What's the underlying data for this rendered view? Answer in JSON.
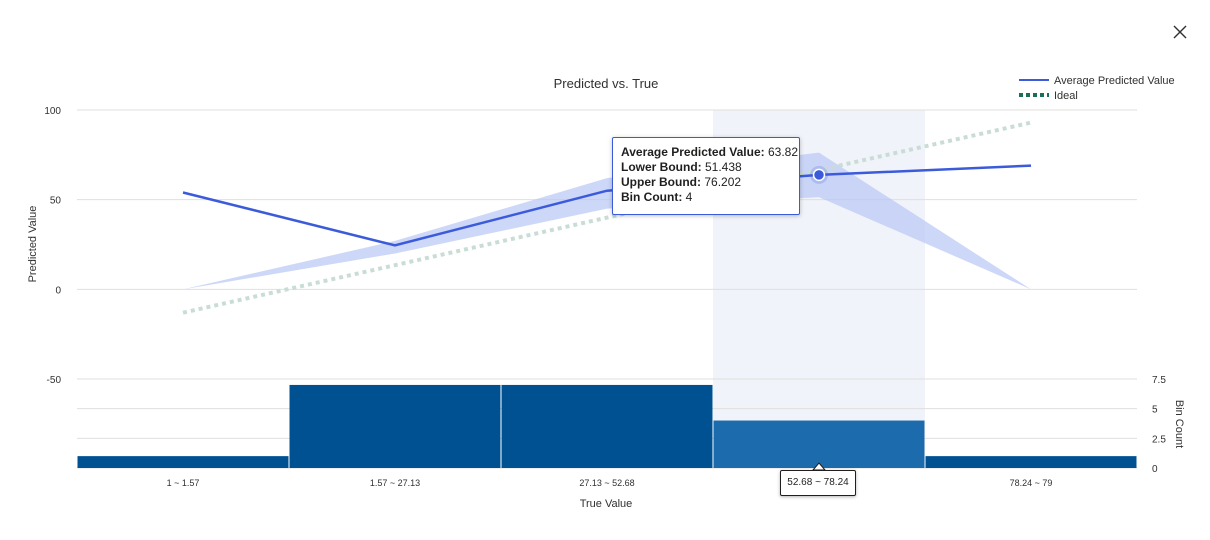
{
  "close": {
    "icon": "close-icon"
  },
  "chart_data": {
    "type": "line",
    "title": "Predicted vs. True",
    "xlabel": "True Value",
    "ylabel": "Predicted Value",
    "y2label": "Bin Count",
    "ylim": [
      -50,
      100
    ],
    "yticks": [
      100,
      50,
      0,
      -50
    ],
    "y2lim": [
      0,
      7.5
    ],
    "y2ticks": [
      7.5,
      5,
      2.5,
      0
    ],
    "categories": [
      "1 ~ 1.57",
      "1.57 ~ 27.13",
      "27.13 ~ 52.68",
      "52.68 ~ 78.24",
      "78.24 ~ 79"
    ],
    "series": [
      {
        "name": "Average Predicted Value",
        "color": "#3b5bdb",
        "values": [
          54,
          24.5,
          55,
          63.82,
          69
        ]
      }
    ],
    "ideal": {
      "name": "Ideal",
      "color": "#1a6e5a",
      "x_ends": [
        -0.5,
        4.5
      ],
      "y_ends": [
        -13,
        93
      ]
    },
    "bounds": {
      "lower": [
        0,
        20,
        45,
        51.438,
        0
      ],
      "upper": [
        0,
        27,
        62,
        76.202,
        0
      ],
      "color": "#b8c6f5"
    },
    "bin_counts": [
      1,
      7,
      7,
      4,
      1
    ],
    "bar_color": "#005192",
    "highlight_bar_color": "#1c6bad",
    "highlight_index": 3,
    "grid": true,
    "legend_position": "top-right"
  },
  "tooltip": {
    "avg_label": "Average Predicted Value:",
    "avg_value": "63.82",
    "lower_label": "Lower Bound:",
    "lower_value": "51.438",
    "upper_label": "Upper Bound:",
    "upper_value": "76.202",
    "count_label": "Bin Count:",
    "count_value": "4"
  }
}
